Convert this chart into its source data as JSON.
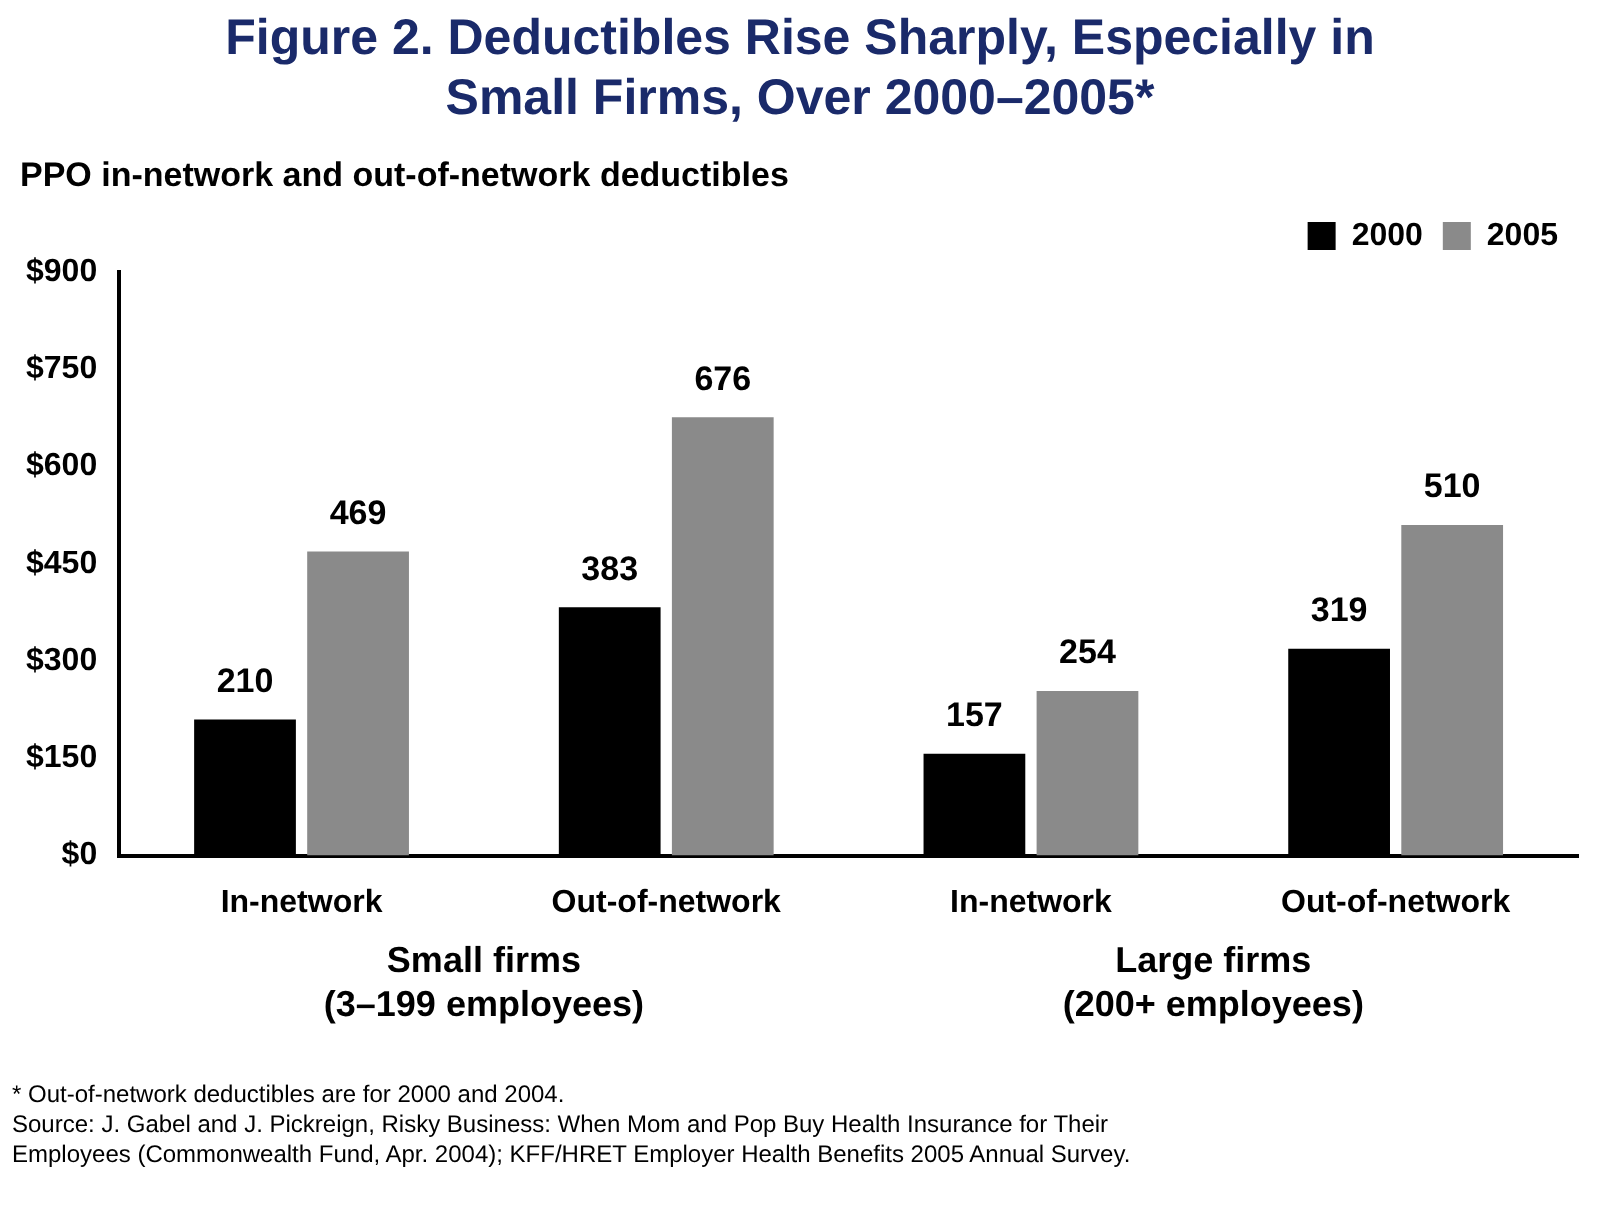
{
  "chart_data": {
    "type": "bar",
    "title": "Figure 2. Deductibles Rise Sharply, Especially in Small Firms, Over 2000–2005*",
    "subtitle": "PPO in-network and out-of-network deductibles",
    "categories": [
      "In-network",
      "Out-of-network",
      "In-network",
      "Out-of-network"
    ],
    "series": [
      {
        "name": "2000",
        "color": "#000000",
        "values": [
          210,
          383,
          157,
          319
        ]
      },
      {
        "name": "2005",
        "color": "#8a8a8a",
        "values": [
          469,
          676,
          254,
          510
        ]
      }
    ],
    "ylim": [
      0,
      900
    ],
    "yticks": [
      {
        "value": 0,
        "label": "$0"
      },
      {
        "value": 150,
        "label": "$150"
      },
      {
        "value": 300,
        "label": "$300"
      },
      {
        "value": 450,
        "label": "$450"
      },
      {
        "value": 600,
        "label": "$600"
      },
      {
        "value": 750,
        "label": "$750"
      },
      {
        "value": 900,
        "label": "$900"
      }
    ],
    "data_labels": true,
    "legend": "top right",
    "annotations": [
      "Small firms (3–199 employees)",
      "Large firms (200+ employees)",
      "* Out-of-network deductibles are for 2000 and 2004.",
      "Source: J. Gabel and J. Pickreign, Risky Business: When Mom and Pop Buy Health Insurance for Their Employees (Commonwealth Fund, Apr. 2004); KFF/HRET Employer Health Benefits 2005 Annual Survey."
    ]
  }
}
